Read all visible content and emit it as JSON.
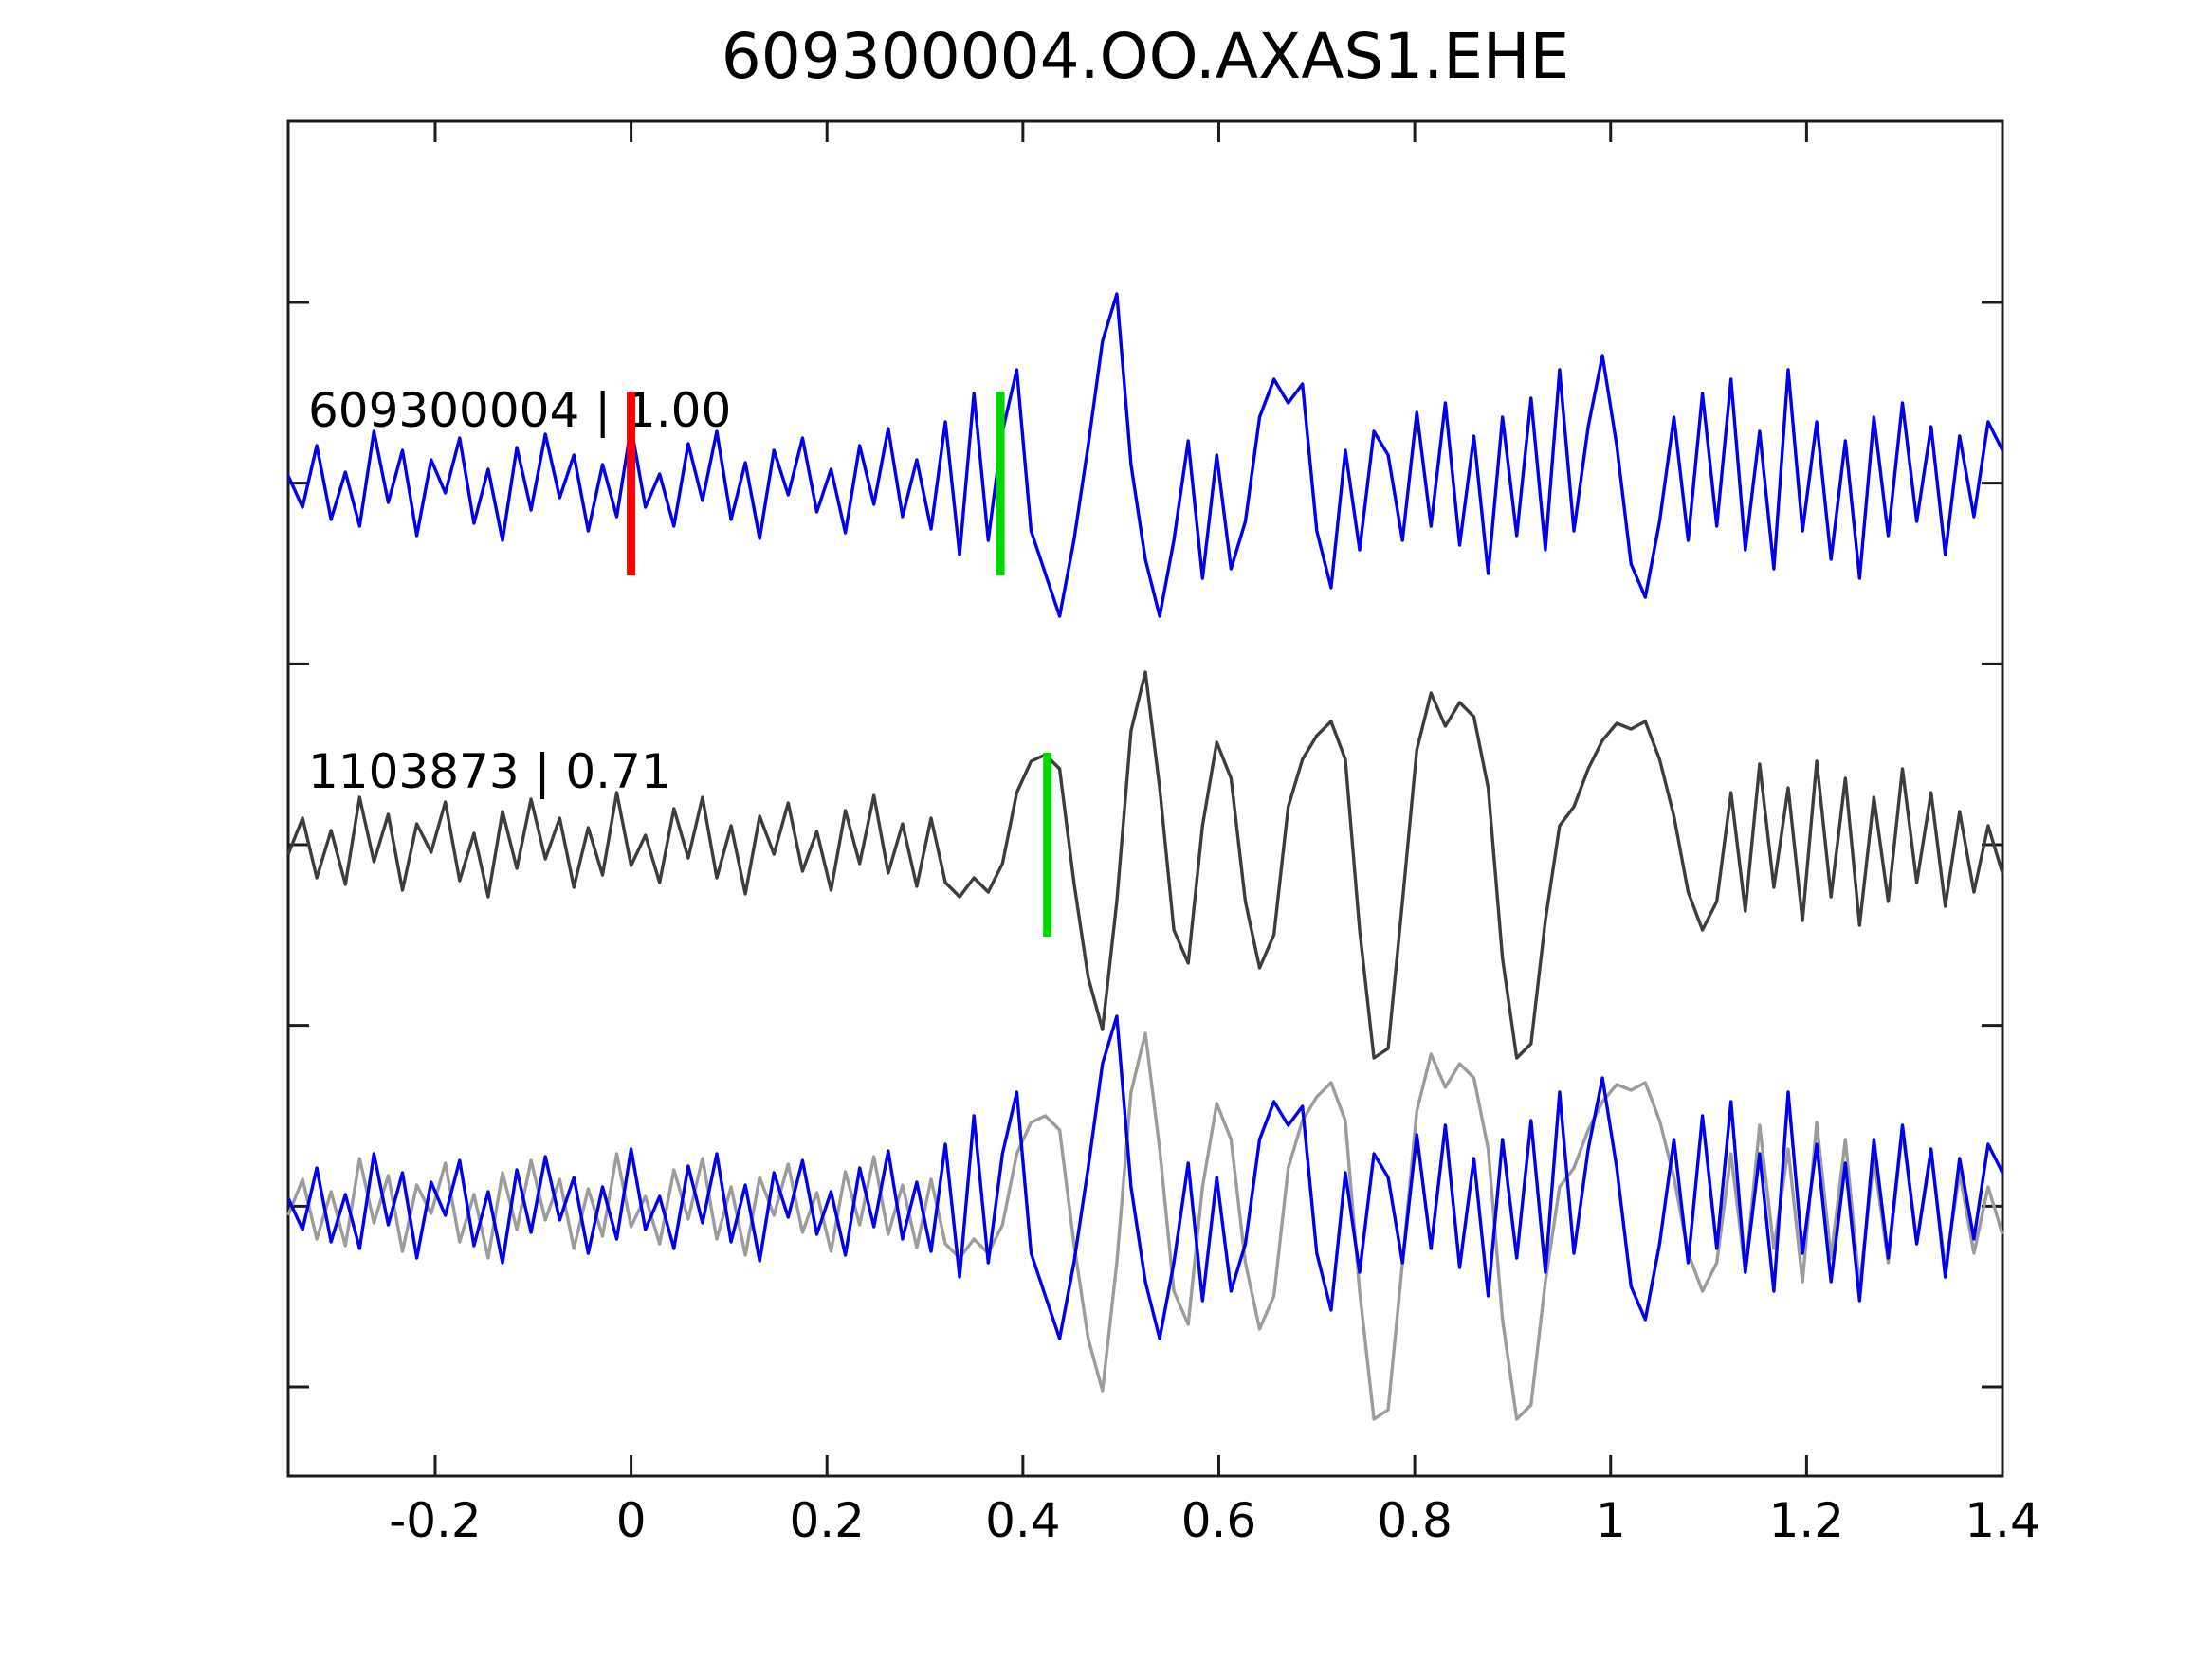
{
  "title": "609300004.OO.AXAS1.EHE",
  "colors": {
    "background": "#ffffff",
    "axes": "#1c1c1c",
    "text": "#000000",
    "detection_blue": "#0000ee",
    "template_dark": "#3d3d3d",
    "overlay_gray": "#9c9c9c",
    "pick_green": "#00d900",
    "origin_red": "#ff0000"
  },
  "chart_data": {
    "type": "line",
    "title": "609300004.OO.AXAS1.EHE",
    "xlabel": "",
    "ylabel": "",
    "xlim": [
      -0.35,
      1.4
    ],
    "x_ticks": [
      -0.2,
      0,
      0.2,
      0.4,
      0.6,
      0.8,
      1,
      1.2,
      1.4
    ],
    "x_tick_labels": [
      "-0.2",
      "0",
      "0.2",
      "0.4",
      "0.6",
      "0.8",
      "1",
      "1.2",
      "1.4"
    ],
    "grid": false,
    "legend": "none",
    "amplitude_units": "pixel offset from row baseline, positive = up",
    "rows": [
      {
        "label": "609300004 | 1.00",
        "series": [
          {
            "trace": "detection"
          }
        ]
      },
      {
        "label": "1103873 | 0.71",
        "series": [
          {
            "trace": "template"
          }
        ]
      },
      {
        "label": "",
        "series": [
          {
            "trace": "template",
            "color": "#9c9c9c"
          },
          {
            "trace": "detection"
          }
        ]
      }
    ],
    "traces": [
      {
        "id": "detection",
        "label": "609300004 | 1.00",
        "correlation": "1.00",
        "color": "#0000ee",
        "values": [
          8,
          -25,
          40,
          -38,
          12,
          -45,
          55,
          -20,
          35,
          -55,
          25,
          -10,
          48,
          -42,
          15,
          -60,
          38,
          -28,
          52,
          -15,
          30,
          -50,
          20,
          -35,
          60,
          -25,
          10,
          -45,
          42,
          -18,
          55,
          -38,
          22,
          -58,
          35,
          -12,
          48,
          -30,
          15,
          -52,
          40,
          -22,
          58,
          -35,
          25,
          -48,
          65,
          -75,
          95,
          -60,
          55,
          120,
          -50,
          -95,
          -140,
          -60,
          40,
          150,
          200,
          20,
          -80,
          -140,
          -60,
          45,
          -100,
          30,
          -90,
          -40,
          70,
          110,
          85,
          105,
          -50,
          -110,
          35,
          -70,
          55,
          30,
          -60,
          75,
          -45,
          85,
          -65,
          50,
          -95,
          70,
          -55,
          90,
          -70,
          120,
          -50,
          60,
          135,
          40,
          -85,
          -120,
          -40,
          70,
          -60,
          95,
          -45,
          110,
          -70,
          55,
          -90,
          120,
          -50,
          65,
          -80,
          45,
          -100,
          70,
          -55,
          85,
          -40,
          60,
          -75,
          50,
          -35,
          65,
          35
        ]
      },
      {
        "id": "template",
        "label": "1103873 | 0.71",
        "correlation": "0.71",
        "color": "#3d3d3d",
        "overlay_color": "#9c9c9c",
        "values": [
          -10,
          28,
          -35,
          15,
          -42,
          50,
          -18,
          32,
          -48,
          22,
          -8,
          45,
          -38,
          12,
          -55,
          35,
          -25,
          48,
          -15,
          28,
          -45,
          18,
          -32,
          55,
          -22,
          10,
          -40,
          38,
          -14,
          50,
          -35,
          20,
          -52,
          30,
          -10,
          44,
          -28,
          14,
          -48,
          36,
          -20,
          52,
          -30,
          22,
          -44,
          28,
          -40,
          -55,
          -35,
          -50,
          -20,
          55,
          88,
          95,
          80,
          -40,
          -140,
          -195,
          -60,
          120,
          182,
          60,
          -90,
          -125,
          20,
          108,
          70,
          -60,
          -130,
          -95,
          40,
          90,
          115,
          130,
          90,
          -90,
          -225,
          -215,
          -60,
          100,
          160,
          125,
          150,
          135,
          60,
          -120,
          -225,
          -210,
          -80,
          20,
          40,
          80,
          110,
          128,
          122,
          130,
          90,
          30,
          -50,
          -90,
          -60,
          55,
          -70,
          85,
          -45,
          60,
          -80,
          88,
          -55,
          70,
          -85,
          50,
          -60,
          80,
          -40,
          55,
          -65,
          35,
          -50,
          20,
          -30
        ]
      }
    ],
    "markers": [
      {
        "row": 0,
        "t": 0.0,
        "color": "#ff0000",
        "name": "origin-time-marker"
      },
      {
        "row": 0,
        "t": 0.377,
        "color": "#00d900",
        "name": "pick-marker-detection"
      },
      {
        "row": 1,
        "t": 0.425,
        "color": "#00d900",
        "name": "pick-marker-template"
      }
    ]
  }
}
